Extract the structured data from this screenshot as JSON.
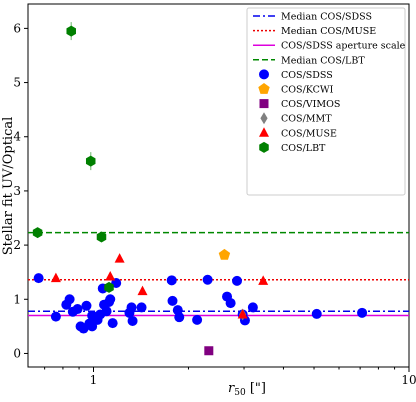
{
  "chart_data": {
    "type": "scatter",
    "xlabel": "r₅₀ [\"]",
    "xlabel_main": "r",
    "xlabel_sub": "50",
    "xlabel_unit": " [\"]",
    "ylabel": "Stellar fit UV/Optical",
    "x_scale": "log",
    "xlim": [
      0.62,
      10
    ],
    "ylim": [
      -0.25,
      6.45
    ],
    "x_ticks": [
      {
        "value": 1,
        "label": "1"
      },
      {
        "value": 10,
        "label": "10"
      }
    ],
    "y_ticks": [
      {
        "value": 0,
        "label": "0"
      },
      {
        "value": 1,
        "label": "1"
      },
      {
        "value": 2,
        "label": "2"
      },
      {
        "value": 3,
        "label": "3"
      },
      {
        "value": 4,
        "label": "4"
      },
      {
        "value": 5,
        "label": "5"
      },
      {
        "value": 6,
        "label": "6"
      }
    ],
    "legend_position": "top-right",
    "lines": [
      {
        "name": "Median COS/SDSS",
        "y": 0.78,
        "color": "#0000ee",
        "style": "dashdot"
      },
      {
        "name": "Median COS/MUSE",
        "y": 1.36,
        "color": "#ee0000",
        "style": "dotted"
      },
      {
        "name": "COS/SDSS aperture scale",
        "y": 0.7,
        "color": "#dd00dd",
        "style": "solid"
      },
      {
        "name": "Median COS/LBT",
        "y": 2.23,
        "color": "#008800",
        "style": "dashed"
      }
    ],
    "series": [
      {
        "name": "COS/SDSS",
        "marker": "circle",
        "color": "#0000ff",
        "points": [
          {
            "x": 0.67,
            "y": 1.39
          },
          {
            "x": 0.76,
            "y": 0.68
          },
          {
            "x": 0.82,
            "y": 0.9
          },
          {
            "x": 0.84,
            "y": 1.0
          },
          {
            "x": 0.86,
            "y": 0.77
          },
          {
            "x": 0.89,
            "y": 0.82
          },
          {
            "x": 0.91,
            "y": 0.5
          },
          {
            "x": 0.93,
            "y": 0.46
          },
          {
            "x": 0.95,
            "y": 0.88
          },
          {
            "x": 0.97,
            "y": 0.55
          },
          {
            "x": 0.99,
            "y": 0.7
          },
          {
            "x": 0.99,
            "y": 0.5
          },
          {
            "x": 1.03,
            "y": 0.62
          },
          {
            "x": 1.05,
            "y": 0.72
          },
          {
            "x": 1.07,
            "y": 1.2
          },
          {
            "x": 1.08,
            "y": 0.9
          },
          {
            "x": 1.1,
            "y": 0.78
          },
          {
            "x": 1.12,
            "y": 0.95
          },
          {
            "x": 1.13,
            "y": 1.0
          },
          {
            "x": 1.15,
            "y": 0.56
          },
          {
            "x": 1.18,
            "y": 1.3
          },
          {
            "x": 1.3,
            "y": 0.75
          },
          {
            "x": 1.32,
            "y": 0.85
          },
          {
            "x": 1.33,
            "y": 0.6
          },
          {
            "x": 1.42,
            "y": 0.85
          },
          {
            "x": 1.77,
            "y": 1.35
          },
          {
            "x": 1.78,
            "y": 0.97
          },
          {
            "x": 1.85,
            "y": 0.8
          },
          {
            "x": 1.87,
            "y": 0.67
          },
          {
            "x": 2.13,
            "y": 0.62
          },
          {
            "x": 2.3,
            "y": 1.36
          },
          {
            "x": 2.65,
            "y": 1.05
          },
          {
            "x": 2.72,
            "y": 0.93
          },
          {
            "x": 2.85,
            "y": 1.34
          },
          {
            "x": 2.97,
            "y": 0.72
          },
          {
            "x": 3.02,
            "y": 0.61
          },
          {
            "x": 3.2,
            "y": 0.85
          },
          {
            "x": 5.1,
            "y": 0.73
          },
          {
            "x": 7.1,
            "y": 0.75
          }
        ]
      },
      {
        "name": "COS/KCWI",
        "marker": "pentagon",
        "color": "#ffa500",
        "points": [
          {
            "x": 2.6,
            "y": 1.82
          }
        ]
      },
      {
        "name": "COS/VIMOS",
        "marker": "square",
        "color": "#800080",
        "points": [
          {
            "x": 2.32,
            "y": 0.05
          }
        ]
      },
      {
        "name": "COS/MMT",
        "marker": "diamond",
        "color": "#808080",
        "points": [
          {
            "x": 2.97,
            "y": 0.72
          }
        ]
      },
      {
        "name": "COS/MUSE",
        "marker": "triangle",
        "color": "#ff0000",
        "points": [
          {
            "x": 0.76,
            "y": 1.39
          },
          {
            "x": 1.13,
            "y": 1.42
          },
          {
            "x": 1.21,
            "y": 1.75
          },
          {
            "x": 1.43,
            "y": 1.15
          },
          {
            "x": 2.97,
            "y": 0.72
          },
          {
            "x": 3.45,
            "y": 1.34
          }
        ]
      },
      {
        "name": "COS/LBT",
        "marker": "hexagon",
        "color": "#008000",
        "points": [
          {
            "x": 0.665,
            "y": 2.23
          },
          {
            "x": 0.85,
            "y": 5.95
          },
          {
            "x": 0.98,
            "y": 3.55
          },
          {
            "x": 1.06,
            "y": 2.15
          },
          {
            "x": 1.12,
            "y": 1.22
          }
        ]
      }
    ]
  }
}
